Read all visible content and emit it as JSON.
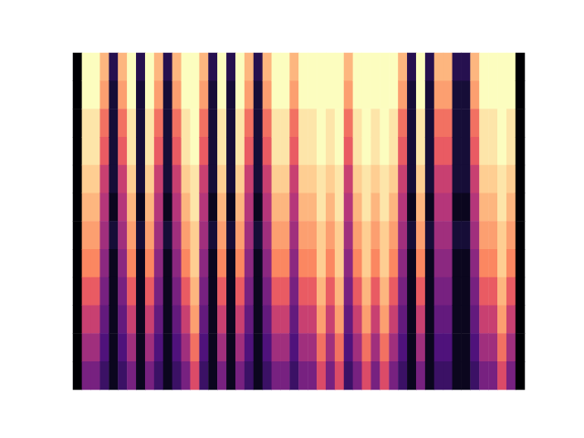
{
  "chart_data": {
    "type": "heatmap",
    "tick_labels": false,
    "grid": false,
    "zlim": [
      0,
      1
    ],
    "cells": [
      [
        0,
        0,
        0,
        0,
        0,
        0,
        0,
        0,
        0,
        0,
        0,
        0
      ],
      [
        1,
        1,
        0.95,
        0.95,
        0.9,
        0.85,
        0.8,
        0.75,
        0.65,
        0.55,
        0.45,
        0.35
      ],
      [
        1,
        1,
        0.95,
        0.95,
        0.9,
        0.85,
        0.8,
        0.75,
        0.65,
        0.55,
        0.45,
        0.35
      ],
      [
        0.85,
        0.8,
        0.7,
        0.65,
        0.55,
        0.5,
        0.45,
        0.4,
        0.35,
        0.3,
        0.25,
        0.2
      ],
      [
        0.15,
        0.1,
        0.1,
        0.1,
        0.1,
        0.05,
        0.1,
        0.05,
        0.05,
        0.05,
        0.05,
        0.05
      ],
      [
        0.85,
        0.8,
        0.7,
        0.65,
        0.55,
        0.5,
        0.45,
        0.4,
        0.35,
        0.3,
        0.25,
        0.2
      ],
      [
        1,
        1,
        0.95,
        0.95,
        0.9,
        0.85,
        0.8,
        0.75,
        0.65,
        0.55,
        0.45,
        0.35
      ],
      [
        0.15,
        0.1,
        0.1,
        0.1,
        0.1,
        0.05,
        0.1,
        0.05,
        0.05,
        0.05,
        0.05,
        0.05
      ],
      [
        1,
        1,
        0.95,
        0.95,
        0.9,
        0.85,
        0.8,
        0.75,
        0.65,
        0.55,
        0.45,
        0.35
      ],
      [
        0.85,
        0.8,
        0.7,
        0.65,
        0.55,
        0.5,
        0.45,
        0.4,
        0.35,
        0.3,
        0.25,
        0.2
      ],
      [
        0.15,
        0.1,
        0.1,
        0.1,
        0.1,
        0.05,
        0.1,
        0.05,
        0.05,
        0.05,
        0.05,
        0.05
      ],
      [
        0.85,
        0.8,
        0.7,
        0.65,
        0.55,
        0.5,
        0.45,
        0.4,
        0.35,
        0.3,
        0.25,
        0.2
      ],
      [
        1,
        1,
        0.95,
        0.95,
        0.9,
        0.85,
        0.8,
        0.75,
        0.65,
        0.55,
        0.45,
        0.35
      ],
      [
        1,
        1,
        1,
        1,
        0.95,
        0.95,
        0.9,
        0.9,
        0.85,
        0.8,
        0.7,
        0.6
      ],
      [
        0.85,
        0.8,
        0.7,
        0.65,
        0.55,
        0.5,
        0.45,
        0.4,
        0.35,
        0.3,
        0.25,
        0.2
      ],
      [
        0.15,
        0.1,
        0.1,
        0.1,
        0.1,
        0.05,
        0.1,
        0.05,
        0.05,
        0.05,
        0.05,
        0.05
      ],
      [
        1,
        1,
        0.95,
        0.95,
        0.9,
        0.85,
        0.8,
        0.75,
        0.65,
        0.55,
        0.45,
        0.35
      ],
      [
        0.15,
        0.1,
        0.1,
        0.1,
        0.1,
        0.05,
        0.1,
        0.05,
        0.05,
        0.05,
        0.05,
        0.05
      ],
      [
        1,
        1,
        0.95,
        0.95,
        0.9,
        0.85,
        0.8,
        0.75,
        0.65,
        0.55,
        0.45,
        0.35
      ],
      [
        0.85,
        0.8,
        0.7,
        0.65,
        0.55,
        0.5,
        0.45,
        0.4,
        0.35,
        0.3,
        0.25,
        0.2
      ],
      [
        0.15,
        0.1,
        0.1,
        0.1,
        0.1,
        0.05,
        0.1,
        0.05,
        0.05,
        0.05,
        0.05,
        0.05
      ],
      [
        0.85,
        0.8,
        0.7,
        0.65,
        0.55,
        0.5,
        0.45,
        0.4,
        0.35,
        0.3,
        0.25,
        0.2
      ],
      [
        1,
        1,
        0.95,
        0.95,
        0.9,
        0.85,
        0.8,
        0.75,
        0.65,
        0.55,
        0.45,
        0.35
      ],
      [
        1,
        1,
        0.95,
        0.95,
        0.9,
        0.85,
        0.8,
        0.75,
        0.65,
        0.55,
        0.45,
        0.35
      ],
      [
        0.85,
        0.8,
        0.7,
        0.65,
        0.55,
        0.5,
        0.45,
        0.4,
        0.35,
        0.3,
        0.25,
        0.2
      ],
      [
        1,
        1,
        0.95,
        0.95,
        0.9,
        0.85,
        0.8,
        0.75,
        0.65,
        0.55,
        0.45,
        0.35
      ],
      [
        1,
        1,
        0.95,
        0.95,
        0.9,
        0.85,
        0.8,
        0.75,
        0.65,
        0.55,
        0.45,
        0.35
      ],
      [
        1,
        1,
        1,
        1,
        0.95,
        0.95,
        0.9,
        0.9,
        0.85,
        0.8,
        0.7,
        0.6
      ],
      [
        1,
        1,
        0.95,
        0.95,
        0.9,
        0.85,
        0.8,
        0.75,
        0.65,
        0.55,
        0.45,
        0.35
      ],
      [
        1,
        1,
        1,
        1,
        0.95,
        0.95,
        0.9,
        0.9,
        0.85,
        0.8,
        0.7,
        0.6
      ],
      [
        0.85,
        0.8,
        0.7,
        0.65,
        0.55,
        0.5,
        0.45,
        0.4,
        0.35,
        0.3,
        0.25,
        0.2
      ],
      [
        1,
        1,
        0.95,
        0.95,
        0.9,
        0.85,
        0.8,
        0.75,
        0.65,
        0.55,
        0.45,
        0.35
      ],
      [
        1,
        1,
        1,
        1,
        0.95,
        0.95,
        0.9,
        0.9,
        0.85,
        0.8,
        0.7,
        0.6
      ],
      [
        1,
        1,
        0.95,
        0.95,
        0.9,
        0.85,
        0.8,
        0.75,
        0.65,
        0.55,
        0.45,
        0.35
      ],
      [
        1,
        1,
        1,
        1,
        0.95,
        0.95,
        0.9,
        0.9,
        0.85,
        0.8,
        0.7,
        0.6
      ],
      [
        1,
        1,
        0.95,
        0.95,
        0.9,
        0.85,
        0.8,
        0.75,
        0.65,
        0.55,
        0.45,
        0.35
      ],
      [
        0.85,
        0.8,
        0.7,
        0.65,
        0.55,
        0.5,
        0.45,
        0.4,
        0.35,
        0.3,
        0.25,
        0.2
      ],
      [
        0.15,
        0.1,
        0.1,
        0.1,
        0.1,
        0.05,
        0.1,
        0.05,
        0.05,
        0.05,
        0.05,
        0.05
      ],
      [
        1,
        1,
        0.95,
        0.95,
        0.9,
        0.85,
        0.8,
        0.75,
        0.65,
        0.55,
        0.45,
        0.35
      ],
      [
        0.15,
        0.1,
        0.1,
        0.1,
        0.1,
        0.05,
        0.1,
        0.05,
        0.05,
        0.05,
        0.05,
        0.05
      ],
      [
        0.85,
        0.8,
        0.7,
        0.65,
        0.55,
        0.5,
        0.45,
        0.4,
        0.35,
        0.3,
        0.25,
        0.2
      ],
      [
        0.85,
        0.8,
        0.7,
        0.65,
        0.55,
        0.5,
        0.45,
        0.4,
        0.35,
        0.3,
        0.25,
        0.2
      ],
      [
        0.15,
        0.1,
        0.1,
        0.1,
        0.1,
        0.05,
        0.1,
        0.05,
        0.05,
        0.05,
        0.05,
        0.05
      ],
      [
        0.15,
        0.1,
        0.1,
        0.1,
        0.1,
        0.05,
        0.1,
        0.05,
        0.05,
        0.05,
        0.05,
        0.05
      ],
      [
        0.85,
        0.8,
        0.7,
        0.65,
        0.55,
        0.5,
        0.45,
        0.4,
        0.35,
        0.3,
        0.25,
        0.2
      ],
      [
        1,
        1,
        0.95,
        0.95,
        0.9,
        0.85,
        0.8,
        0.75,
        0.65,
        0.55,
        0.45,
        0.35
      ],
      [
        1,
        1,
        0.95,
        0.95,
        0.9,
        0.85,
        0.8,
        0.75,
        0.65,
        0.55,
        0.45,
        0.35
      ],
      [
        1,
        1,
        1,
        1,
        0.95,
        0.95,
        0.9,
        0.9,
        0.85,
        0.8,
        0.7,
        0.6
      ],
      [
        1,
        1,
        0.95,
        0.95,
        0.9,
        0.85,
        0.8,
        0.75,
        0.65,
        0.55,
        0.45,
        0.35
      ],
      [
        0,
        0,
        0,
        0,
        0,
        0,
        0,
        0,
        0,
        0,
        0,
        0
      ]
    ]
  }
}
